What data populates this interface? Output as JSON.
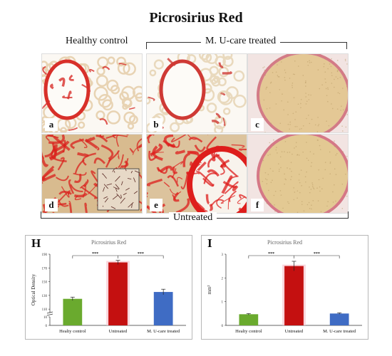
{
  "figure": {
    "title": "Picrosirius Red",
    "col_header_left": "Healthy control",
    "col_header_right": "M. U-care treated",
    "row_bracket_label": "Untreated",
    "panels": [
      {
        "letter": "a",
        "type": "airway",
        "tissue": "#e8d3b3",
        "stain": "#d8302a",
        "density": 0.55
      },
      {
        "letter": "b",
        "type": "airway",
        "tissue": "#e9d9bd",
        "stain": "#cf3a35",
        "density": 0.35
      },
      {
        "letter": "c",
        "type": "nodule",
        "tissue": "#e4c895",
        "stain": "#c64f60",
        "density": 0.2
      },
      {
        "letter": "d",
        "type": "dense",
        "tissue": "#d8bb8f",
        "stain": "#d9201c",
        "density": 0.95
      },
      {
        "letter": "e",
        "type": "dense_airway",
        "tissue": "#dcc39d",
        "stain": "#de1e1c",
        "density": 0.85
      },
      {
        "letter": "f",
        "type": "nodule",
        "tissue": "#e3c993",
        "stain": "#c94a5f",
        "density": 0.15
      }
    ]
  },
  "chart_data": [
    {
      "panel_letter": "H",
      "type": "bar",
      "title": "Picrosirius Red",
      "ylabel": "Optical Density",
      "categories": [
        "Healty control",
        "Untreated",
        "M. U-care treated"
      ],
      "values": [
        125,
        178,
        135
      ],
      "errors": [
        2.5,
        3,
        4
      ],
      "bar_colors": [
        "#6aaa2e",
        "#c41010",
        "#3f6cc4"
      ],
      "yticks_upper": [
        110,
        130,
        150,
        170,
        190
      ],
      "yticks_lower": [
        0,
        10
      ],
      "ylim_upper": [
        105,
        190
      ],
      "ylim_lower": [
        0,
        10
      ],
      "axis_break": true,
      "significance": [
        "***",
        "***"
      ]
    },
    {
      "panel_letter": "I",
      "type": "bar",
      "title": "Picrosirius Red",
      "ylabel": "mm²",
      "categories": [
        "Healty control",
        "Untreated",
        "M. U-care treated"
      ],
      "values": [
        0.47,
        2.5,
        0.5
      ],
      "errors": [
        0.03,
        0.2,
        0.03
      ],
      "bar_colors": [
        "#6aaa2e",
        "#c41010",
        "#3f6cc4"
      ],
      "yticks": [
        0,
        1,
        2,
        3
      ],
      "ylim": [
        0,
        3
      ],
      "significance": [
        "***",
        "***"
      ]
    }
  ]
}
